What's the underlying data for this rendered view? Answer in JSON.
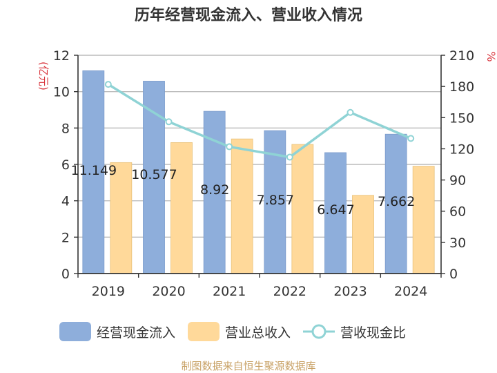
{
  "title": "历年经营现金流入、营业收入情况",
  "source_note": "制图数据来自恒生聚源数据库",
  "colors": {
    "inflow": "#8eaedb",
    "revenue": "#ffd99a",
    "ratio": "#8fd3d5",
    "axis_unit": "#d9363e"
  },
  "chart_data": {
    "type": "bar",
    "categories": [
      "2019",
      "2020",
      "2021",
      "2022",
      "2023",
      "2024"
    ],
    "series": [
      {
        "name": "经营现金流入",
        "axis": "left",
        "values": [
          11.149,
          10.577,
          8.92,
          7.857,
          6.647,
          7.662
        ]
      },
      {
        "name": "营业总收入",
        "axis": "left",
        "values": [
          6.1,
          7.2,
          7.4,
          7.1,
          4.3,
          5.9
        ]
      },
      {
        "name": "营收现金比",
        "type": "line",
        "axis": "right",
        "values": [
          182,
          146,
          122,
          112,
          155,
          130
        ]
      }
    ],
    "data_labels": [
      "11.149",
      "10.577",
      "8.92",
      "7.857",
      "6.647",
      "7.662"
    ],
    "ylabel_left": "亿元",
    "ylabel_right": "%",
    "ylim_left": [
      0,
      12
    ],
    "ylim_right": [
      0,
      210
    ],
    "yticks_left": [
      "0",
      "2",
      "4",
      "6",
      "8",
      "10",
      "12"
    ],
    "yticks_right": [
      "0",
      "30",
      "60",
      "90",
      "120",
      "150",
      "180",
      "210"
    ],
    "grid": true,
    "legend_position": "bottom"
  }
}
